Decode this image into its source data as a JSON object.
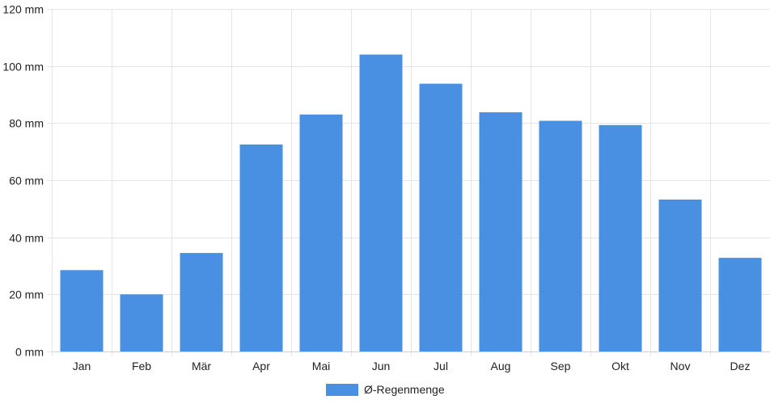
{
  "chart_data": {
    "type": "bar",
    "categories": [
      "Jan",
      "Feb",
      "Mär",
      "Apr",
      "Mai",
      "Jun",
      "Jul",
      "Aug",
      "Sep",
      "Okt",
      "Nov",
      "Dez"
    ],
    "series": [
      {
        "name": "Ø-Regenmenge",
        "values": [
          28.5,
          20,
          34.5,
          72.5,
          83,
          104,
          93.8,
          83.8,
          80.8,
          79.3,
          53.2,
          32.8
        ],
        "color": "#4a90e2"
      }
    ],
    "y_unit": "mm",
    "ylim": [
      0,
      120
    ],
    "y_ticks": [
      0,
      20,
      40,
      60,
      80,
      100,
      120
    ],
    "grid": true,
    "legend_position": "bottom-center"
  }
}
